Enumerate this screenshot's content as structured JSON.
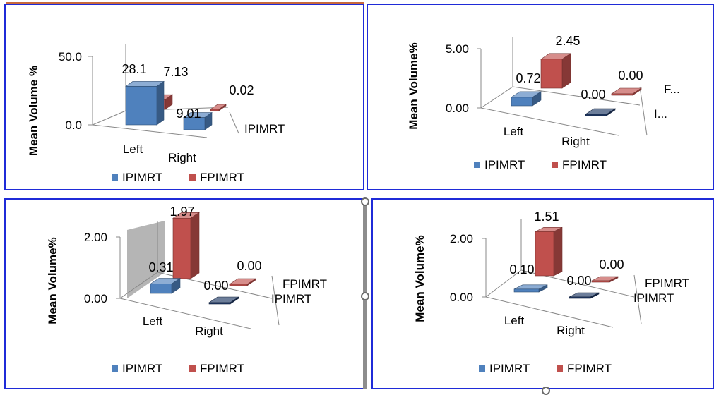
{
  "colors": {
    "ip": "#4f81bd",
    "fp": "#c0504d",
    "ip_right": "#1f3864"
  },
  "chart_data": [
    {
      "type": "bar",
      "categories": [
        "Left",
        "Right"
      ],
      "series": [
        {
          "name": "IPIMRT",
          "values": [
            28.1,
            9.01
          ]
        },
        {
          "name": "FPIMRT",
          "values": [
            7.13,
            0.02
          ]
        }
      ],
      "value_labels": [
        "28.1",
        "9.01",
        "7.13",
        "0.02"
      ],
      "depth_labels": [
        "IPIMRT"
      ],
      "ylabel": "Mean Volume %",
      "yticks": [
        "0.0",
        "50.0"
      ],
      "ylim": [
        0,
        50
      ],
      "legend": "bottom"
    },
    {
      "type": "bar",
      "categories": [
        "Left",
        "Right"
      ],
      "series": [
        {
          "name": "IPIMRT",
          "values": [
            0.72,
            0.0
          ]
        },
        {
          "name": "FPIMRT",
          "values": [
            2.45,
            0.0
          ]
        }
      ],
      "value_labels": [
        "0.72",
        "0.00",
        "2.45",
        "0.00"
      ],
      "depth_labels": [
        "F...",
        "I..."
      ],
      "ylabel": "Mean Volume%",
      "yticks": [
        "0.00",
        "5.00"
      ],
      "ylim": [
        0,
        5
      ],
      "legend": "bottom"
    },
    {
      "type": "bar",
      "categories": [
        "Left",
        "Right"
      ],
      "series": [
        {
          "name": "IPIMRT",
          "values": [
            0.31,
            0.0
          ]
        },
        {
          "name": "FPIMRT",
          "values": [
            1.97,
            0.0
          ]
        }
      ],
      "value_labels": [
        "0.31",
        "0.00",
        "1.97",
        "0.00"
      ],
      "depth_labels": [
        "FPIMRT",
        "IPIMRT"
      ],
      "ylabel": "Mean Volume%",
      "yticks": [
        "0.00",
        "2.00"
      ],
      "ylim": [
        0,
        2
      ],
      "legend": "bottom"
    },
    {
      "type": "bar",
      "categories": [
        "Left",
        "Right"
      ],
      "series": [
        {
          "name": "IPIMRT",
          "values": [
            0.1,
            0.0
          ]
        },
        {
          "name": "FPIMRT",
          "values": [
            1.51,
            0.0
          ]
        }
      ],
      "value_labels": [
        "0.10",
        "0.00",
        "1.51",
        "0.00"
      ],
      "depth_labels": [
        "FPIMRT",
        "IPIMRT"
      ],
      "ylabel": "Mean Volume%",
      "yticks": [
        "0.00",
        "2.00"
      ],
      "ylim": [
        0,
        2
      ],
      "legend": "bottom"
    }
  ]
}
